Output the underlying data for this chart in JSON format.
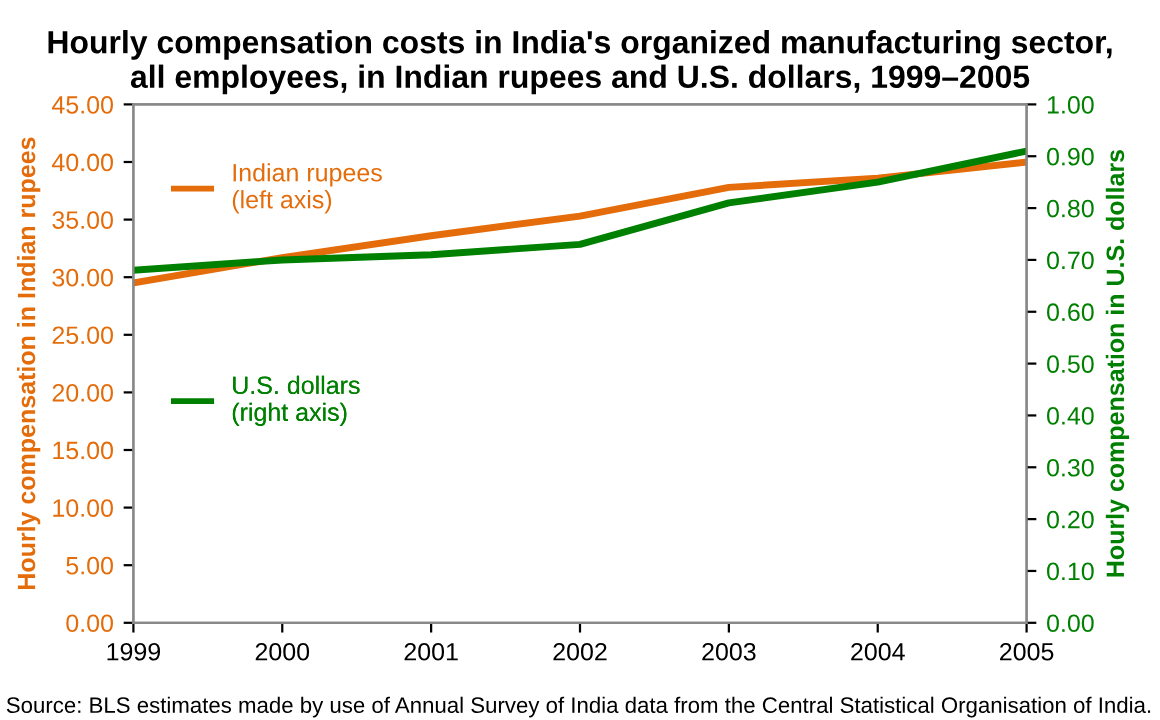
{
  "chart_data": {
    "type": "line",
    "title": "Hourly compensation costs in India's organized manufacturing sector,\nall employees, in Indian rupees and U.S. dollars, 1999–2005",
    "x": [
      1999,
      2000,
      2001,
      2002,
      2003,
      2004,
      2005
    ],
    "series": [
      {
        "name": "Indian rupees\n(left axis)",
        "color": "#e46c0a",
        "values": [
          29.5,
          31.7,
          33.6,
          35.3,
          37.8,
          38.6,
          40.0
        ]
      },
      {
        "name": "U.S. dollars\n(right axis)",
        "color": "#008000",
        "axis": "y2",
        "values": [
          0.68,
          0.7,
          0.71,
          0.73,
          0.81,
          0.85,
          0.91
        ]
      }
    ],
    "xlim": [
      1999,
      2005
    ],
    "xticks": [
      1999,
      2000,
      2001,
      2002,
      2003,
      2004,
      2005
    ],
    "ylim": [
      0,
      45
    ],
    "yticks": [
      {
        "value": 0,
        "label": "0.00"
      },
      {
        "value": 5,
        "label": "5.00"
      },
      {
        "value": 10,
        "label": "10.00"
      },
      {
        "value": 15,
        "label": "15.00"
      },
      {
        "value": 20,
        "label": "20.00"
      },
      {
        "value": 25,
        "label": "25.00"
      },
      {
        "value": 30,
        "label": "30.00"
      },
      {
        "value": 35,
        "label": "35.00"
      },
      {
        "value": 40,
        "label": "40.00"
      },
      {
        "value": 45,
        "label": "45.00"
      }
    ],
    "y2lim": [
      0,
      1
    ],
    "y2ticks": [
      {
        "value": 0,
        "label": "0.00"
      },
      {
        "value": 0.1,
        "label": "0.10"
      },
      {
        "value": 0.2,
        "label": "0.20"
      },
      {
        "value": 0.3,
        "label": "0.30"
      },
      {
        "value": 0.4,
        "label": "0.40"
      },
      {
        "value": 0.5,
        "label": "0.50"
      },
      {
        "value": 0.6,
        "label": "0.60"
      },
      {
        "value": 0.7,
        "label": "0.70"
      },
      {
        "value": 0.8,
        "label": "0.80"
      },
      {
        "value": 0.9,
        "label": "0.90"
      },
      {
        "value": 1,
        "label": "1.00"
      }
    ],
    "ylabel": "Hourly compensation in Indian rupees",
    "y2label": "Hourly compensation in U.S. dollars",
    "annotations": [
      "Source: BLS estimates made by use of Annual Survey of India data from the Central Statistical Organisation of India."
    ],
    "grid": false,
    "legend": "top left",
    "marker": "none",
    "line_style": "solid"
  }
}
